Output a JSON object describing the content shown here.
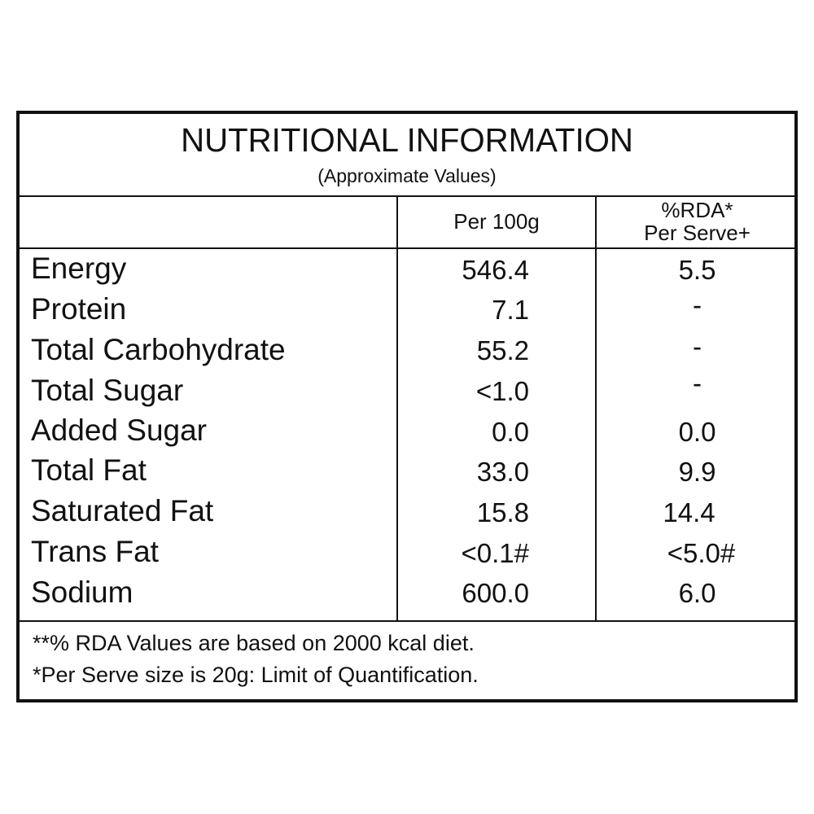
{
  "header": {
    "title": "NUTRITIONAL INFORMATION",
    "subtitle": "(Approximate Values)"
  },
  "columns": {
    "per100g": "Per 100g",
    "rda_line1": "%RDA*",
    "rda_line2": "Per Serve+"
  },
  "rows": [
    {
      "name": "Energy",
      "per100g": "546.4",
      "rda": "5.5"
    },
    {
      "name": "Protein",
      "per100g": "7.1",
      "rda": "-"
    },
    {
      "name": "Total Carbohydrate",
      "per100g": "55.2",
      "rda": "-"
    },
    {
      "name": "Total Sugar",
      "per100g": "<1.0",
      "rda": "-"
    },
    {
      "name": "Added Sugar",
      "per100g": "0.0",
      "rda": "0.0"
    },
    {
      "name": "Total Fat",
      "per100g": "33.0",
      "rda": "9.9"
    },
    {
      "name": "Saturated Fat",
      "per100g": "15.8",
      "rda": "14.4"
    },
    {
      "name": "Trans Fat",
      "per100g": "<0.1#",
      "rda": "<5.0#"
    },
    {
      "name": "Sodium",
      "per100g": "600.0",
      "rda": "6.0"
    }
  ],
  "footnotes": {
    "line1": "**% RDA Values are based on 2000 kcal diet.",
    "line2": "*Per Serve size is 20g: Limit of Quantification."
  }
}
